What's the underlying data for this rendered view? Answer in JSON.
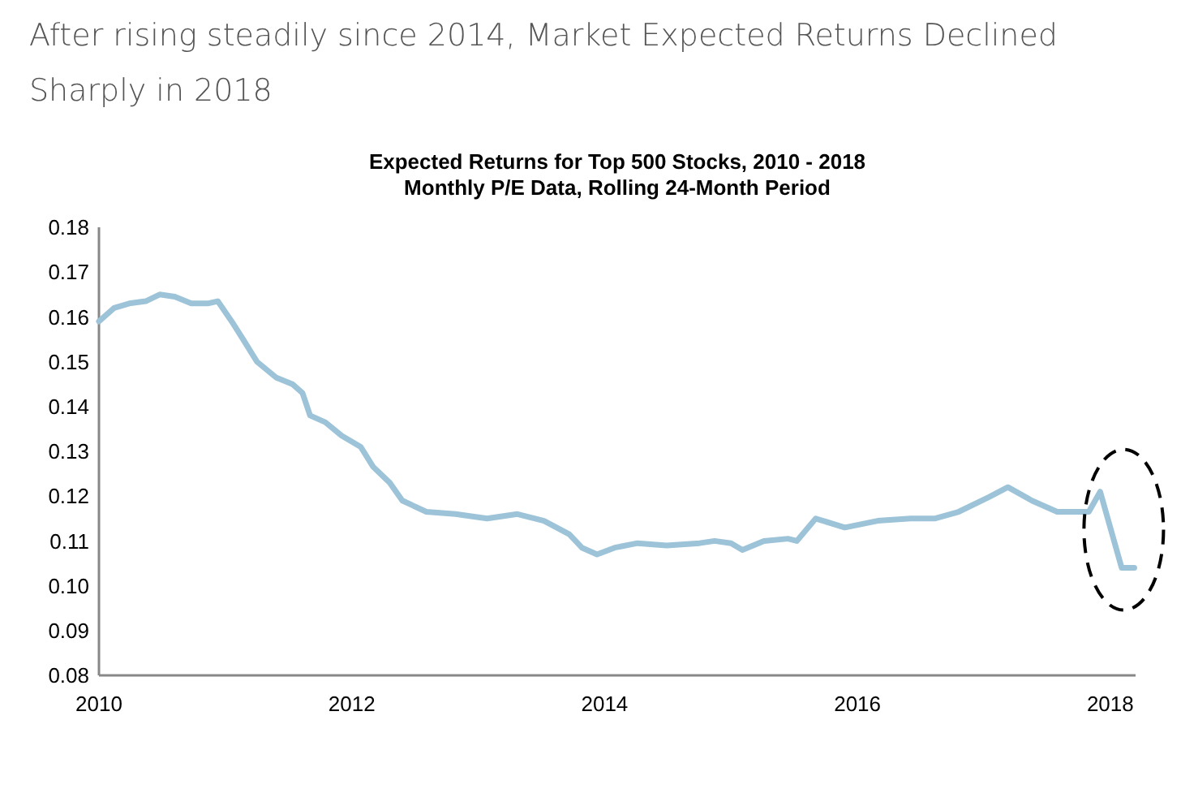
{
  "chart_data": {
    "type": "line",
    "title": "After rising steadily since 2014, Market Expected Returns Declined Sharply in 2018",
    "subtitle": "Expected Returns for Top 500 Stocks, 2010 - 2018\nMonthly P/E Data, Rolling 24-Month Period",
    "x": [
      2010.0,
      2010.12,
      2010.24,
      2010.37,
      2010.48,
      2010.6,
      2010.73,
      2010.86,
      2010.94,
      2011.05,
      2011.14,
      2011.25,
      2011.4,
      2011.53,
      2011.61,
      2011.67,
      2011.79,
      2011.92,
      2012.07,
      2012.17,
      2012.3,
      2012.4,
      2012.59,
      2012.82,
      2013.07,
      2013.31,
      2013.52,
      2013.72,
      2013.82,
      2013.94,
      2014.08,
      2014.26,
      2014.49,
      2014.75,
      2014.87,
      2015.0,
      2015.09,
      2015.26,
      2015.45,
      2015.52,
      2015.67,
      2015.9,
      2016.16,
      2016.42,
      2016.61,
      2016.8,
      2017.04,
      2017.19,
      2017.38,
      2017.58,
      2017.83,
      2017.92,
      2018.09,
      2018.19
    ],
    "series": [
      {
        "color": "#9dc3d8",
        "values": [
          0.159,
          0.162,
          0.163,
          0.1635,
          0.165,
          0.1645,
          0.163,
          0.163,
          0.1635,
          0.159,
          0.155,
          0.15,
          0.1465,
          0.145,
          0.143,
          0.138,
          0.1365,
          0.1335,
          0.131,
          0.1265,
          0.123,
          0.119,
          0.1165,
          0.116,
          0.115,
          0.116,
          0.1145,
          0.1115,
          0.1085,
          0.107,
          0.1085,
          0.1095,
          0.109,
          0.1095,
          0.11,
          0.1095,
          0.108,
          0.11,
          0.1105,
          0.11,
          0.115,
          0.113,
          0.1145,
          0.115,
          0.115,
          0.1165,
          0.1198,
          0.122,
          0.119,
          0.1165,
          0.1165,
          0.121,
          0.104,
          0.104
        ]
      }
    ],
    "xlim": [
      2010,
      2018.2
    ],
    "xticks": [
      2010,
      2012,
      2014,
      2016,
      2018
    ],
    "ylim": [
      0.08,
      0.18
    ],
    "yticks": [
      {
        "value": 0.08,
        "label": "0.08"
      },
      {
        "value": 0.09,
        "label": "0.09"
      },
      {
        "value": 0.1,
        "label": "0.10"
      },
      {
        "value": 0.11,
        "label": "0.11"
      },
      {
        "value": 0.12,
        "label": "0.12"
      },
      {
        "value": 0.13,
        "label": "0.13"
      },
      {
        "value": 0.14,
        "label": "0.14"
      },
      {
        "value": 0.15,
        "label": "0.15"
      },
      {
        "value": 0.16,
        "label": "0.16"
      },
      {
        "value": 0.17,
        "label": "0.17"
      },
      {
        "value": 0.18,
        "label": "0.18"
      }
    ],
    "marker": "none",
    "line_style": "solid"
  }
}
